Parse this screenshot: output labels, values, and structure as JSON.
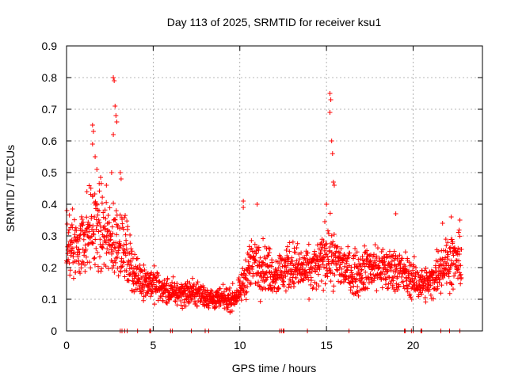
{
  "chart_data": {
    "type": "scatter",
    "title": "Day 113 of 2025, SRMTID for receiver ksu1",
    "xlabel": "GPS time / hours",
    "ylabel": "SRMTID / TECUs",
    "xlim": [
      0,
      24
    ],
    "ylim": [
      0,
      0.9
    ],
    "xticks": [
      "0",
      "5",
      "10",
      "15",
      "20"
    ],
    "xtick_values": [
      0,
      5,
      10,
      15,
      20
    ],
    "yticks": [
      "0",
      "0.1",
      "0.2",
      "0.3",
      "0.4",
      "0.5",
      "0.6",
      "0.7",
      "0.8",
      "0.9"
    ],
    "ytick_values": [
      0,
      0.1,
      0.2,
      0.3,
      0.4,
      0.5,
      0.6,
      0.7,
      0.8,
      0.9
    ],
    "grid": true,
    "marker": "plus",
    "color": "#ff0000",
    "trend": {
      "x": [
        0,
        0.5,
        1,
        1.5,
        2,
        2.5,
        3,
        3.5,
        4,
        4.5,
        5,
        5.5,
        6,
        6.5,
        7,
        7.5,
        8,
        8.5,
        9,
        9.5,
        10,
        10.5,
        11,
        11.5,
        12,
        12.5,
        13,
        13.5,
        14,
        14.5,
        15,
        15.5,
        16,
        16.5,
        17,
        17.5,
        18,
        18.5,
        19,
        19.5,
        20,
        20.5,
        21,
        21.5,
        22,
        22.5,
        22.8
      ],
      "y": [
        0.26,
        0.27,
        0.29,
        0.33,
        0.32,
        0.28,
        0.3,
        0.24,
        0.17,
        0.16,
        0.15,
        0.13,
        0.12,
        0.12,
        0.12,
        0.12,
        0.11,
        0.1,
        0.1,
        0.1,
        0.12,
        0.2,
        0.22,
        0.2,
        0.18,
        0.19,
        0.21,
        0.19,
        0.19,
        0.2,
        0.25,
        0.22,
        0.2,
        0.18,
        0.19,
        0.2,
        0.2,
        0.19,
        0.2,
        0.18,
        0.16,
        0.15,
        0.15,
        0.2,
        0.22,
        0.22,
        0.22
      ]
    },
    "spikes": [
      {
        "x": 2.7,
        "y": 0.8
      },
      {
        "x": 2.75,
        "y": 0.79
      },
      {
        "x": 2.8,
        "y": 0.71
      },
      {
        "x": 2.85,
        "y": 0.68
      },
      {
        "x": 2.7,
        "y": 0.62
      },
      {
        "x": 2.9,
        "y": 0.66
      },
      {
        "x": 1.5,
        "y": 0.65
      },
      {
        "x": 1.55,
        "y": 0.63
      },
      {
        "x": 1.5,
        "y": 0.59
      },
      {
        "x": 1.65,
        "y": 0.55
      },
      {
        "x": 1.75,
        "y": 0.51
      },
      {
        "x": 2.3,
        "y": 0.46
      },
      {
        "x": 2.6,
        "y": 0.5
      },
      {
        "x": 3.1,
        "y": 0.5
      },
      {
        "x": 3.15,
        "y": 0.48
      },
      {
        "x": 15.2,
        "y": 0.75
      },
      {
        "x": 15.25,
        "y": 0.73
      },
      {
        "x": 15.2,
        "y": 0.69
      },
      {
        "x": 15.3,
        "y": 0.6
      },
      {
        "x": 15.35,
        "y": 0.56
      },
      {
        "x": 15.4,
        "y": 0.47
      },
      {
        "x": 15.45,
        "y": 0.46
      },
      {
        "x": 15.0,
        "y": 0.4
      },
      {
        "x": 10.2,
        "y": 0.41
      },
      {
        "x": 10.2,
        "y": 0.39
      },
      {
        "x": 11.0,
        "y": 0.4
      },
      {
        "x": 19.0,
        "y": 0.37
      },
      {
        "x": 22.2,
        "y": 0.36
      },
      {
        "x": 22.7,
        "y": 0.35
      },
      {
        "x": 21.7,
        "y": 0.34
      }
    ],
    "zero_points_x": [
      3.1,
      3.2,
      3.35,
      3.5,
      4.1,
      4.8,
      4.85,
      6.0,
      6.1,
      7.2,
      8.0,
      8.2,
      12.3,
      12.4,
      12.5,
      12.55,
      13.9,
      16.3,
      19.5,
      19.55,
      19.9,
      20.0,
      20.45,
      20.5,
      21.6,
      22.1,
      22.7
    ]
  }
}
